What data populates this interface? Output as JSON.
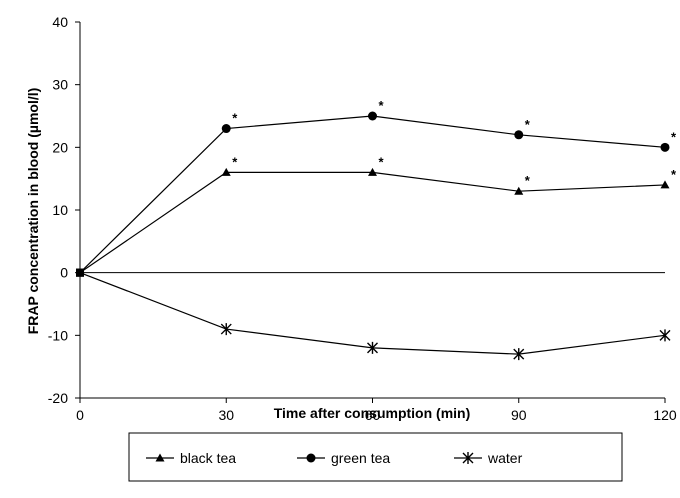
{
  "chart_data": {
    "type": "line",
    "title": "",
    "xlabel": "Time after consumption (min)",
    "ylabel": "FRAP concentration in blood  (µmol/l)",
    "x": [
      0,
      30,
      60,
      90,
      120
    ],
    "xlim": [
      0,
      120
    ],
    "ylim": [
      -20,
      40
    ],
    "xticks": [
      0,
      30,
      60,
      90,
      120
    ],
    "yticks": [
      -20,
      -10,
      0,
      10,
      20,
      30,
      40
    ],
    "grid": false,
    "legend_position": "bottom",
    "significance_marker": "*",
    "series": [
      {
        "name": "black tea",
        "marker": "triangle",
        "values": [
          0,
          16,
          16,
          13,
          14
        ],
        "significant": [
          false,
          true,
          true,
          true,
          true
        ]
      },
      {
        "name": "green tea",
        "marker": "circle",
        "values": [
          0,
          23,
          25,
          22,
          20
        ],
        "significant": [
          false,
          true,
          true,
          true,
          true
        ]
      },
      {
        "name": "water",
        "marker": "asterisk",
        "values": [
          0,
          -9,
          -12,
          -13,
          -10
        ],
        "significant": [
          false,
          false,
          false,
          false,
          false
        ]
      }
    ]
  }
}
